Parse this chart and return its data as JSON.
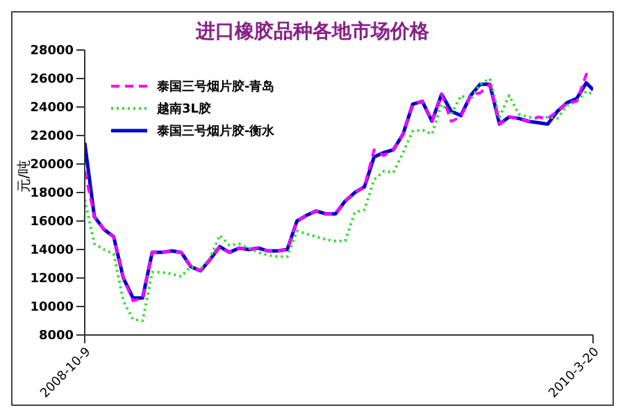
{
  "chart_data": {
    "type": "line",
    "title": "进口橡胶品种各地市场价格",
    "ylabel": "元/吨",
    "x": [
      "2008-10-09",
      "2008-10-19",
      "2008-10-29",
      "2008-11-08",
      "2008-11-18",
      "2008-11-28",
      "2008-12-08",
      "2008-12-18",
      "2008-12-28",
      "2009-01-07",
      "2009-01-17",
      "2009-01-27",
      "2009-02-06",
      "2009-02-16",
      "2009-02-26",
      "2009-03-08",
      "2009-03-18",
      "2009-03-28",
      "2009-04-07",
      "2009-04-17",
      "2009-04-27",
      "2009-05-07",
      "2009-05-17",
      "2009-05-27",
      "2009-06-06",
      "2009-06-16",
      "2009-06-26",
      "2009-07-06",
      "2009-07-16",
      "2009-07-26",
      "2009-08-05",
      "2009-08-15",
      "2009-08-25",
      "2009-09-04",
      "2009-09-14",
      "2009-09-24",
      "2009-10-04",
      "2009-10-14",
      "2009-10-24",
      "2009-11-03",
      "2009-11-13",
      "2009-11-23",
      "2009-12-03",
      "2009-12-13",
      "2009-12-23",
      "2010-01-02",
      "2010-01-12",
      "2010-01-22",
      "2010-02-01",
      "2010-02-11",
      "2010-02-21",
      "2010-03-03",
      "2010-03-13",
      "2010-03-20"
    ],
    "series": [
      {
        "name": "泰国三号烟片胶-青岛",
        "color": "#ff00ff",
        "line_style": "dashed",
        "values": [
          19500,
          16300,
          15400,
          14900,
          12000,
          10400,
          10600,
          13800,
          13800,
          13900,
          13800,
          12800,
          12500,
          13300,
          14200,
          13800,
          14100,
          14000,
          14100,
          13900,
          13900,
          14000,
          16000,
          16400,
          16700,
          16500,
          16500,
          17400,
          18000,
          18400,
          21000,
          20600,
          21000,
          22100,
          24200,
          24400,
          23000,
          24900,
          23000,
          23300,
          24800,
          25000,
          25600,
          22800,
          23300,
          23200,
          23000,
          23300,
          23200,
          23700,
          24300,
          24400,
          26300,
          26300
        ]
      },
      {
        "name": "越南3L胶",
        "color": "#33dd33",
        "line_style": "dotted",
        "values": [
          17500,
          14400,
          14000,
          13700,
          10400,
          9100,
          9000,
          12400,
          12400,
          12300,
          12100,
          12800,
          12600,
          13400,
          15000,
          14300,
          14400,
          14100,
          13800,
          13600,
          13500,
          13500,
          15300,
          15100,
          14900,
          14700,
          14600,
          14600,
          16600,
          16800,
          18900,
          19500,
          19400,
          20800,
          22300,
          22400,
          22100,
          24200,
          23500,
          24800,
          24500,
          25600,
          26000,
          23300,
          24800,
          23500,
          23300,
          23200,
          23300,
          23200,
          24100,
          24400,
          25100,
          24900
        ]
      },
      {
        "name": "泰国三号烟片胶-衡水",
        "color": "#0000cc",
        "line_style": "solid",
        "values": [
          21500,
          16300,
          15400,
          14900,
          12000,
          10600,
          10600,
          13800,
          13800,
          13900,
          13800,
          12800,
          12500,
          13300,
          14200,
          13800,
          14100,
          14000,
          14100,
          13900,
          13900,
          14000,
          16000,
          16400,
          16700,
          16500,
          16500,
          17400,
          18000,
          18400,
          20500,
          20800,
          21000,
          22100,
          24200,
          24400,
          23000,
          24900,
          23700,
          23400,
          24800,
          25600,
          25600,
          22800,
          23300,
          23200,
          23000,
          22900,
          22800,
          23700,
          24300,
          24600,
          25700,
          25200
        ]
      }
    ],
    "xlim": [
      "2008-10-09",
      "2010-03-20"
    ],
    "xticks": [
      {
        "value": "2008-10-09",
        "label": "2008-10-9"
      },
      {
        "value": "2010-03-20",
        "label": "2010-3-20"
      }
    ],
    "ylim": [
      8000,
      28000
    ],
    "yticks": [
      8000,
      10000,
      12000,
      14000,
      16000,
      18000,
      20000,
      22000,
      24000,
      26000,
      28000
    ],
    "grid": false,
    "legend": "top left",
    "marker": "none"
  }
}
